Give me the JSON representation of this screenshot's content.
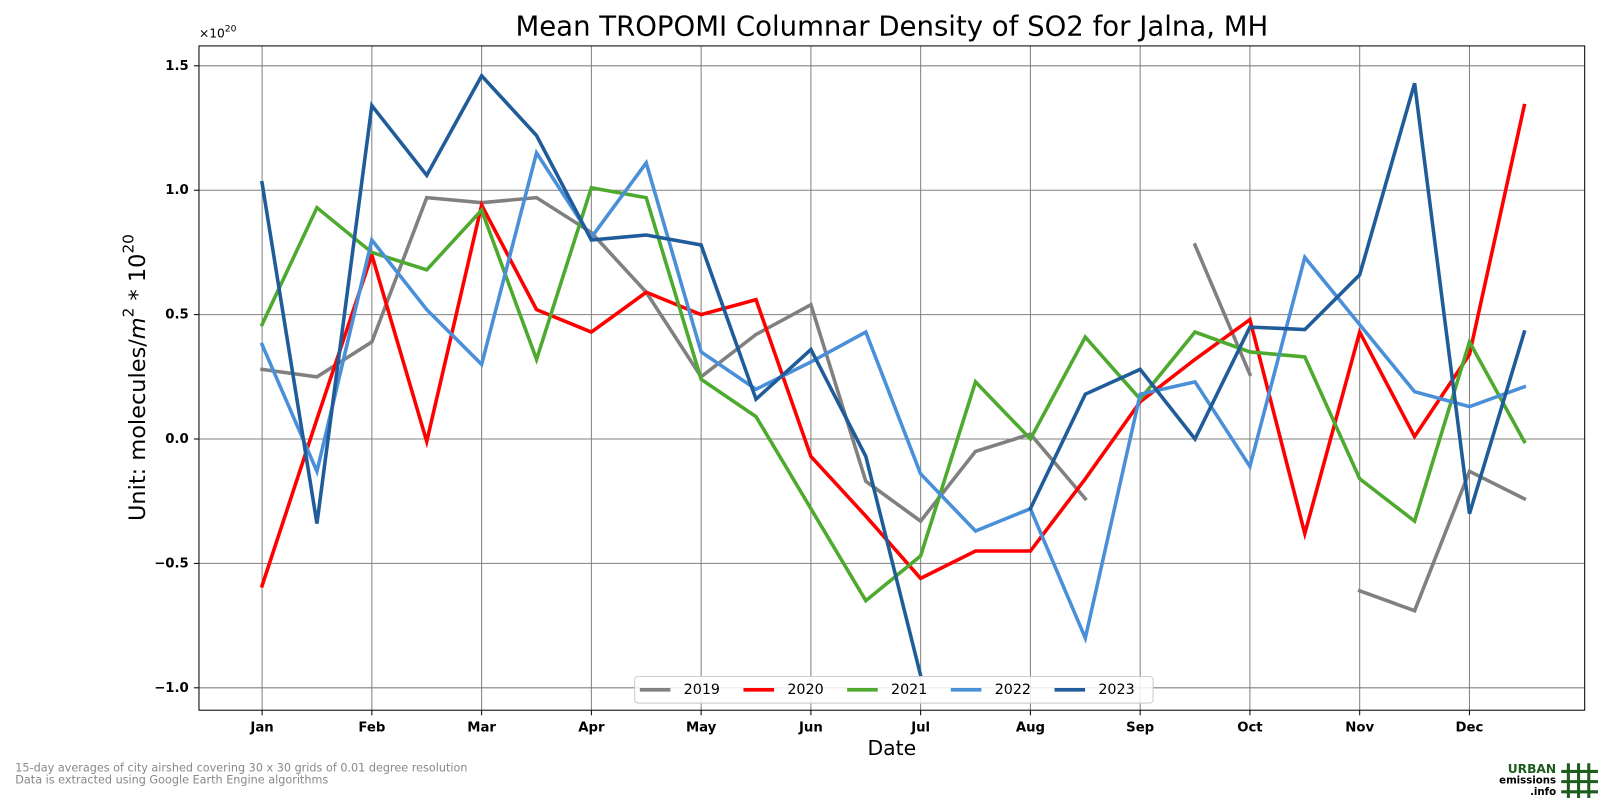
{
  "chart_data": {
    "type": "line",
    "title": "Mean TROPOMI Columnar Density of SO2 for Jalna, MH",
    "xlabel": "Date",
    "ylabel": [
      "Unit: molecules/",
      "m",
      "2",
      " * 10",
      "20"
    ],
    "y_offset": [
      "×10",
      "20"
    ],
    "categories": [
      "Jan",
      null,
      "Feb",
      null,
      "Mar",
      null,
      "Apr",
      null,
      "May",
      null,
      "Jun",
      null,
      "Jul",
      null,
      "Aug",
      null,
      "Sep",
      null,
      "Oct",
      null,
      "Nov",
      null,
      "Dec",
      null
    ],
    "xlim": [
      -1.15,
      24.1
    ],
    "ylim": [
      -1.09,
      1.58
    ],
    "yticks": [
      {
        "value": -1.0,
        "label": "−1.0"
      },
      {
        "value": -0.5,
        "label": "−0.5"
      },
      {
        "value": 0.0,
        "label": "0.0"
      },
      0.5,
      {
        "value": 1.0,
        "label": "1.0"
      },
      1.5
    ],
    "grid": true,
    "legend": "bottom",
    "series": [
      {
        "name": "2019",
        "color": "#808080",
        "values": [
          0.28,
          0.25,
          0.39,
          0.97,
          0.95,
          0.97,
          0.83,
          0.59,
          0.25,
          0.42,
          0.54,
          -0.17,
          -0.33,
          -0.05,
          0.02,
          -0.24,
          null,
          0.78,
          0.26,
          null,
          -0.61,
          -0.69,
          -0.13,
          -0.24
        ]
      },
      {
        "name": "2020",
        "color": "#ff0000",
        "values": [
          -0.59,
          0.08,
          0.74,
          -0.01,
          0.94,
          0.52,
          0.43,
          0.59,
          0.5,
          0.56,
          -0.07,
          -0.31,
          -0.56,
          -0.45,
          -0.45,
          -0.16,
          0.15,
          0.32,
          0.48,
          -0.38,
          0.43,
          0.01,
          0.34,
          1.34
        ]
      },
      {
        "name": "2021",
        "color": "#4daa2f",
        "values": [
          0.46,
          0.93,
          0.75,
          0.68,
          0.92,
          0.32,
          1.01,
          0.97,
          0.24,
          0.09,
          -0.28,
          -0.65,
          -0.47,
          0.23,
          0.0,
          0.41,
          0.16,
          0.43,
          0.35,
          0.33,
          -0.16,
          -0.33,
          0.39,
          -0.01
        ]
      },
      {
        "name": "2022",
        "color": "#4a90d9",
        "values": [
          0.38,
          -0.13,
          0.8,
          0.52,
          0.3,
          1.15,
          0.81,
          1.11,
          0.35,
          0.2,
          0.31,
          0.43,
          -0.14,
          -0.37,
          -0.28,
          -0.8,
          0.18,
          0.23,
          -0.11,
          0.73,
          0.46,
          0.19,
          0.13,
          0.21
        ]
      },
      {
        "name": "2023",
        "color": "#1f5c99",
        "values": [
          1.03,
          -0.34,
          1.34,
          1.06,
          1.46,
          1.22,
          0.8,
          0.82,
          0.78,
          0.16,
          0.36,
          -0.07,
          -0.95,
          null,
          -0.28,
          0.18,
          0.28,
          0.0,
          0.45,
          0.44,
          0.66,
          1.43,
          -0.3,
          0.43
        ]
      }
    ]
  },
  "footnotes": [
    "15-day averages of city airshed covering 30 x 30 grids of 0.01 degree resolution",
    "Data is extracted using Google Earth Engine algorithms"
  ],
  "logo": {
    "line1": "URBAN",
    "line2": "emissions",
    "line3": ".info"
  }
}
